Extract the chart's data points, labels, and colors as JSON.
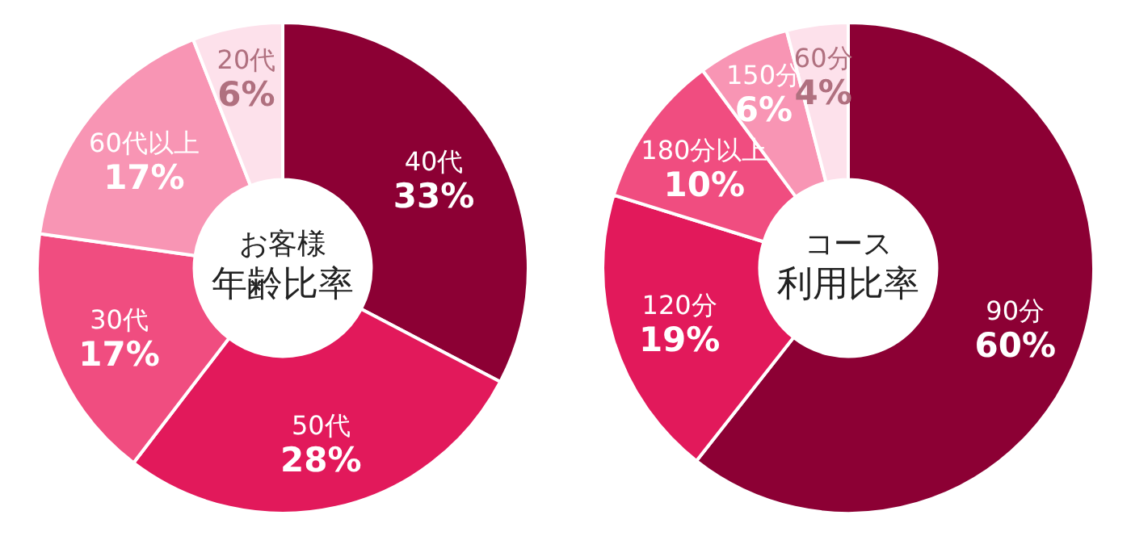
{
  "chart_data": [
    {
      "type": "donut",
      "title": "お客様",
      "subtitle": "年齢比率",
      "categories": [
        "40代",
        "50代",
        "30代",
        "60代以上",
        "20代"
      ],
      "values": [
        33,
        28,
        17,
        17,
        6
      ],
      "value_labels": [
        "33%",
        "28%",
        "17%",
        "17%",
        "6%"
      ],
      "colors": [
        "#8c0034",
        "#e2195b",
        "#f04d80",
        "#f895b4",
        "#fde1eb"
      ]
    },
    {
      "type": "donut",
      "title": "コース",
      "subtitle": "利用比率",
      "categories": [
        "90分",
        "120分",
        "180分以上",
        "150分",
        "60分"
      ],
      "values": [
        60,
        19,
        10,
        6,
        4
      ],
      "value_labels": [
        "60%",
        "19%",
        "10%",
        "6%",
        "4%"
      ],
      "colors": [
        "#8c0034",
        "#e2195b",
        "#f04d80",
        "#f895b4",
        "#fde1eb"
      ]
    }
  ]
}
